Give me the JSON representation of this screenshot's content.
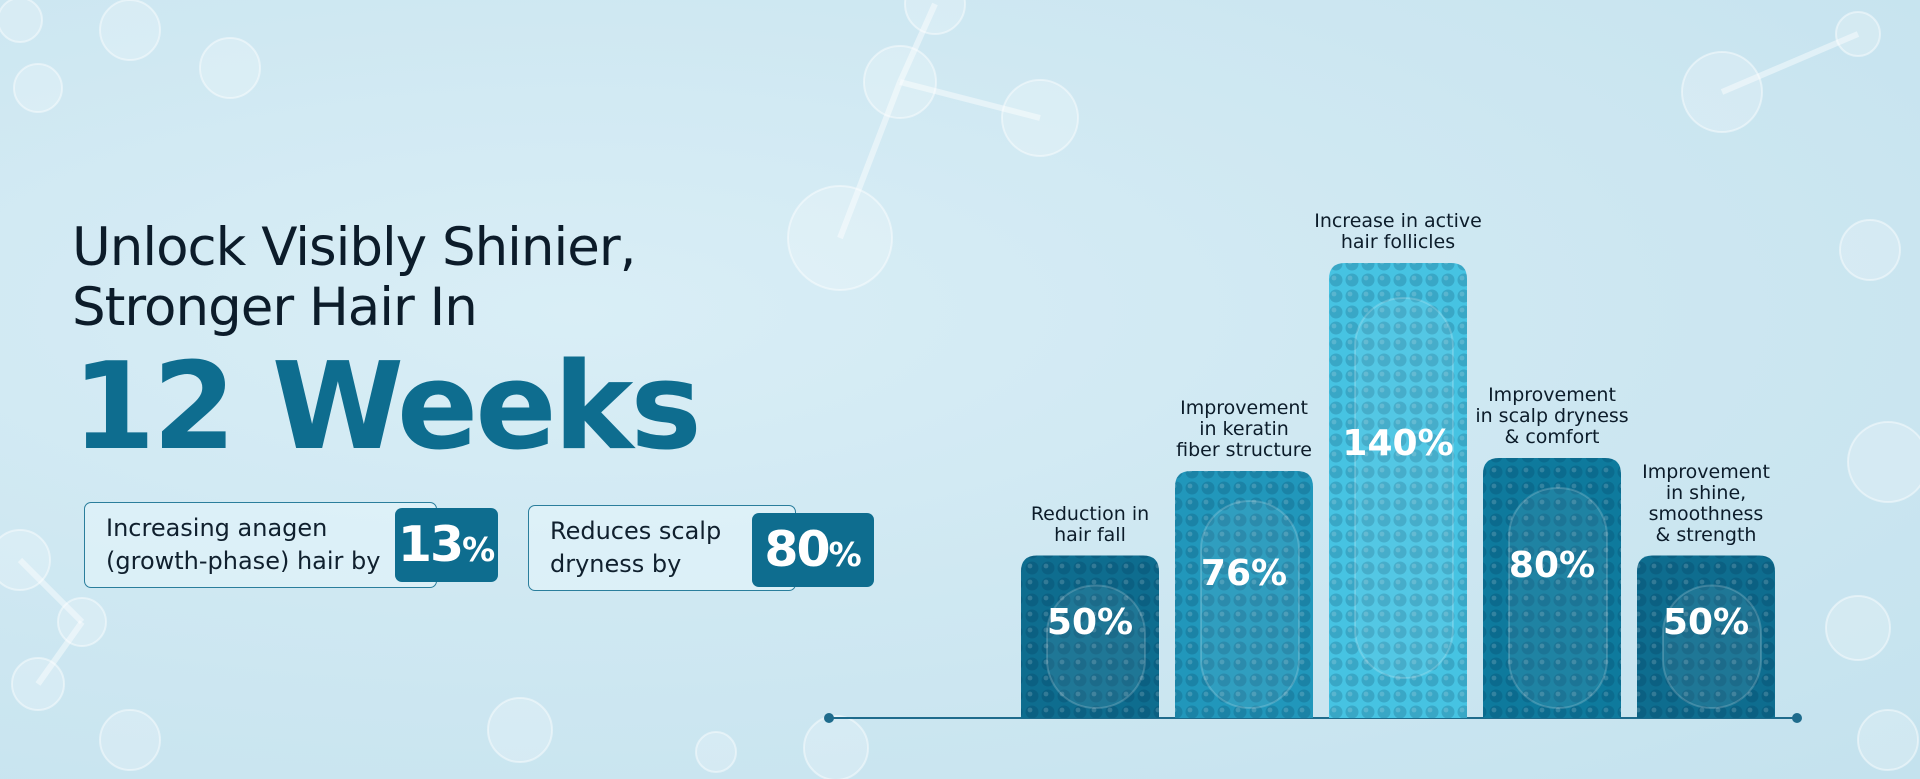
{
  "headline": {
    "line1": "Unlock Visibly Shinier,",
    "line2": "Stronger Hair In",
    "emphasis": "12 Weeks"
  },
  "stats": [
    {
      "text_line1": "Increasing anagen",
      "text_line2": "(growth-phase) hair by",
      "value": "13",
      "unit": "%"
    },
    {
      "text_line1": "Reduces scalp",
      "text_line2": "dryness by",
      "value": "80",
      "unit": "%"
    }
  ],
  "colors": {
    "dark_teal": "#0e6d8f",
    "mid_blue": "#2197bb",
    "light_cyan": "#46c3e2",
    "axis": "#1e6b8c"
  },
  "chart_data": {
    "type": "bar",
    "categories": [
      [
        "Reduction in",
        "hair fall"
      ],
      [
        "Improvement",
        "in keratin",
        "fiber structure"
      ],
      [
        "Increase in active",
        "hair follicles"
      ],
      [
        "Improvement",
        "in scalp dryness",
        "& comfort"
      ],
      [
        "Improvement",
        "in shine,",
        "smoothness",
        "& strength"
      ]
    ],
    "values": [
      50,
      76,
      140,
      80,
      50
    ],
    "value_labels": [
      "50%",
      "76%",
      "140%",
      "80%",
      "50%"
    ],
    "bar_colors": [
      "#0e6d8f",
      "#2197bb",
      "#46c3e2",
      "#0e7a9d",
      "#0e6d8f"
    ]
  }
}
